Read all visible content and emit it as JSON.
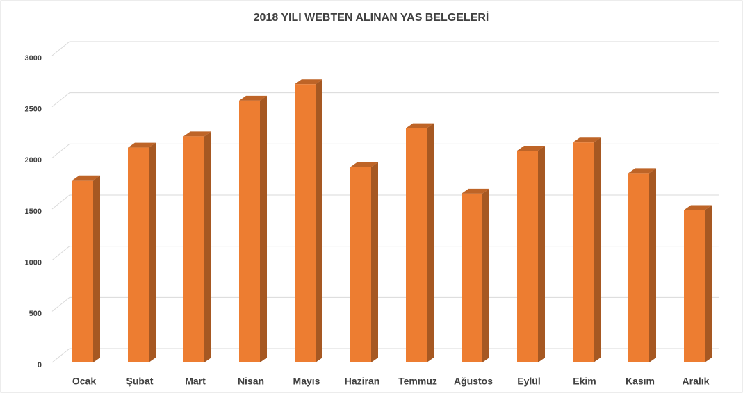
{
  "chart_data": {
    "type": "bar3d",
    "title": "2018 YILI WEBTEN ALINAN YAS BELGELERİ",
    "categories": [
      "Ocak",
      "Şubat",
      "Mart",
      "Nisan",
      "Mayıs",
      "Haziran",
      "Temmuz",
      "Ağustos",
      "Eylül",
      "Ekim",
      "Kasım",
      "Aralık"
    ],
    "values": [
      1780,
      2100,
      2210,
      2560,
      2720,
      1910,
      2290,
      1650,
      2070,
      2150,
      1850,
      1490
    ],
    "color": "#ed7d31",
    "ylim": [
      0,
      3000
    ],
    "yticks": [
      0,
      500,
      1000,
      1500,
      2000,
      2500,
      3000
    ],
    "grid": true
  }
}
